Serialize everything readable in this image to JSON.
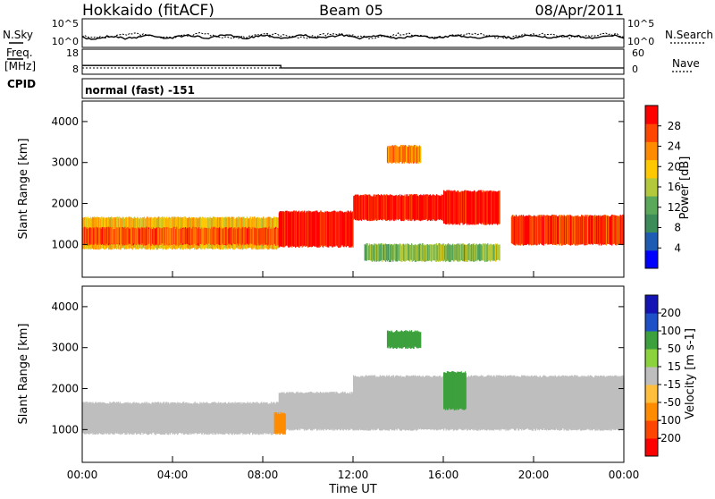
{
  "header": {
    "station": "Hokkaido (fitACF)",
    "beam": "Beam 05",
    "date": "08/Apr/2011"
  },
  "top_panel": {
    "left_label": "N.Sky",
    "left_ticks": [
      "10^5",
      "10^0"
    ],
    "right_ticks": [
      "10^5",
      "10^0"
    ],
    "right_label": "N.Search"
  },
  "freq_panel": {
    "label_line1": "Freq.",
    "label_line2": "[MHz]",
    "left_ticks": [
      "18",
      "8"
    ],
    "right_ticks": [
      "60",
      "0"
    ],
    "right_label": "Nave"
  },
  "cpid": {
    "label": "CPID",
    "value": "normal (fast) -151"
  },
  "colors": {
    "power_scale": [
      "#0000ff",
      "#1e5cb4",
      "#3c8c5a",
      "#5aa85a",
      "#b4c83c",
      "#ffc800",
      "#ff8c00",
      "#ff4600",
      "#ff0000"
    ],
    "velocity_scale": [
      "#1414b4",
      "#1e50c8",
      "#3ca03c",
      "#8cd23c",
      "#bebebe",
      "#ffbe3c",
      "#ff8c00",
      "#ff4600",
      "#ff0000"
    ],
    "ground_scatter": "#bebebe"
  },
  "chart_data": [
    {
      "type": "heatmap",
      "name": "power",
      "ylabel": "Slant Range [km]",
      "xlim": [
        "00:00",
        "24:00"
      ],
      "ylim": [
        200,
        4500
      ],
      "yticks": [
        1000,
        2000,
        3000,
        4000
      ],
      "colorbar": {
        "label": "Power [dB]",
        "ticks": [
          4,
          8,
          12,
          16,
          20,
          24,
          28
        ],
        "range": [
          0,
          32
        ]
      },
      "scatter_regions": [
        {
          "t0": 0.0,
          "t1": 8.7,
          "r0": 900,
          "r1": 1650,
          "value": 20
        },
        {
          "t0": 0.0,
          "t1": 8.7,
          "r0": 1000,
          "r1": 1400,
          "value": 26
        },
        {
          "t0": 8.7,
          "t1": 12.0,
          "r0": 950,
          "r1": 1800,
          "value": 30
        },
        {
          "t0": 12.0,
          "t1": 16.0,
          "r0": 1600,
          "r1": 2200,
          "value": 30
        },
        {
          "t0": 16.0,
          "t1": 18.5,
          "r0": 1500,
          "r1": 2300,
          "value": 30
        },
        {
          "t0": 19.0,
          "t1": 24.0,
          "r0": 1000,
          "r1": 1700,
          "value": 28
        },
        {
          "t0": 13.5,
          "t1": 15.0,
          "r0": 3000,
          "r1": 3400,
          "value": 24
        },
        {
          "t0": 12.5,
          "t1": 18.5,
          "r0": 600,
          "r1": 1000,
          "value": 14
        }
      ]
    },
    {
      "type": "heatmap",
      "name": "velocity",
      "ylabel": "Slant Range [km]",
      "xlabel": "Time UT",
      "xlim": [
        "00:00",
        "24:00"
      ],
      "xticks": [
        "00:00",
        "04:00",
        "08:00",
        "12:00",
        "16:00",
        "20:00",
        "00:00"
      ],
      "ylim": [
        200,
        4500
      ],
      "yticks": [
        1000,
        2000,
        3000,
        4000
      ],
      "colorbar": {
        "label": "Velocity [m s-1]",
        "ticks": [
          200,
          100,
          50,
          15,
          -15,
          -50,
          -100,
          -200
        ],
        "range": [
          -250,
          250
        ]
      },
      "scatter_regions": [
        {
          "t0": 0.0,
          "t1": 8.7,
          "r0": 900,
          "r1": 1650,
          "value": 0
        },
        {
          "t0": 8.7,
          "t1": 12.0,
          "r0": 1000,
          "r1": 1900,
          "value": 0
        },
        {
          "t0": 12.0,
          "t1": 24.0,
          "r0": 1000,
          "r1": 2300,
          "value": 0
        },
        {
          "t0": 13.5,
          "t1": 15.0,
          "r0": 3000,
          "r1": 3400,
          "value": 60
        },
        {
          "t0": 8.5,
          "t1": 9.0,
          "r0": 900,
          "r1": 1400,
          "value": -40
        },
        {
          "t0": 16.0,
          "t1": 17.0,
          "r0": 1500,
          "r1": 2400,
          "value": 40
        }
      ]
    }
  ],
  "freq_series": {
    "freq_mhz": [
      [
        0,
        11.5
      ],
      [
        8.8,
        11.5
      ],
      [
        8.8,
        10.5
      ],
      [
        24,
        10.5
      ]
    ],
    "nave": [
      [
        0,
        15
      ],
      [
        24,
        15
      ]
    ]
  }
}
